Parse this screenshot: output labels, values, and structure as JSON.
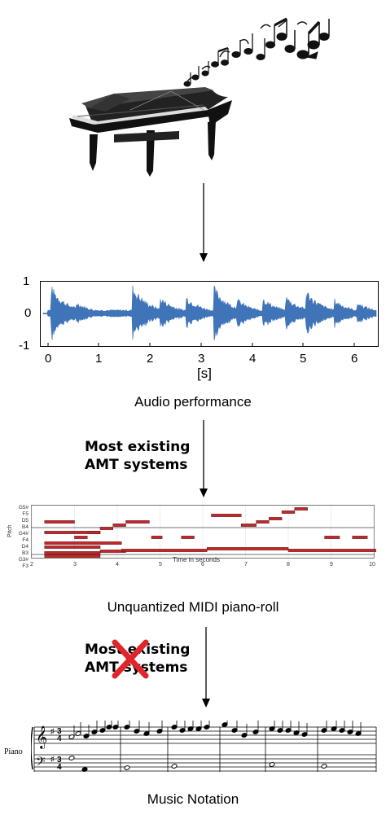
{
  "waveform": {
    "y_ticks": [
      "1",
      "0",
      "-1"
    ],
    "x_ticks": [
      "0",
      "1",
      "2",
      "3",
      "4",
      "5",
      "6"
    ],
    "x_unit": "[s]",
    "color": "#3f74b8"
  },
  "captions": {
    "audio": "Audio performance",
    "pianoroll": "Unquantized MIDI piano-roll",
    "notation": "Music Notation"
  },
  "notes": {
    "first_line1": "Most existing",
    "first_line2": "AMT systems",
    "second_line1": "Most existing",
    "second_line2": "AMT systems"
  },
  "pianoroll": {
    "pitch_label": "Pitch",
    "time_label": "Time in seconds",
    "pitch_ticks": [
      "G5#",
      "F5",
      "D5",
      "B4",
      "G4#",
      "F4",
      "D4",
      "B3",
      "G3#",
      "F3"
    ],
    "time_ticks": [
      "2",
      "3",
      "4",
      "5",
      "6",
      "7",
      "8",
      "9",
      "10"
    ],
    "note_color": "#c0282b"
  },
  "score": {
    "instrument": "Piano",
    "cross_color": "#e0252b"
  }
}
